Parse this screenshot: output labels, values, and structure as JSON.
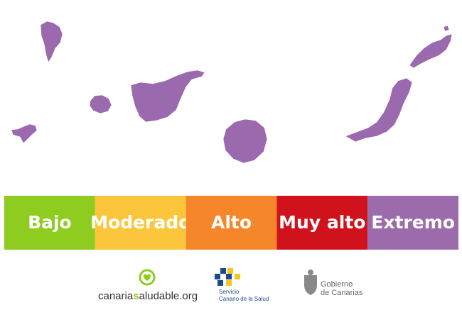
{
  "legend": {
    "items": [
      {
        "label": "Bajo",
        "color": "#8ecc1f"
      },
      {
        "label": "Moderado",
        "color": "#fbc63c"
      },
      {
        "label": "Alto",
        "color": "#f6862a"
      },
      {
        "label": "Muy alto",
        "color": "#d0121c"
      },
      {
        "label": "Extremo",
        "color": "#9c6bac"
      }
    ]
  },
  "logos": {
    "canaria_saludable": {
      "parts": [
        "canaria",
        "s",
        "aludable.org"
      ]
    },
    "servicio_canario": {
      "lines": [
        "Servicio",
        "Canario de la Salud"
      ]
    },
    "gobierno": {
      "lines": [
        "Gobierno",
        "de Canarias"
      ]
    }
  }
}
